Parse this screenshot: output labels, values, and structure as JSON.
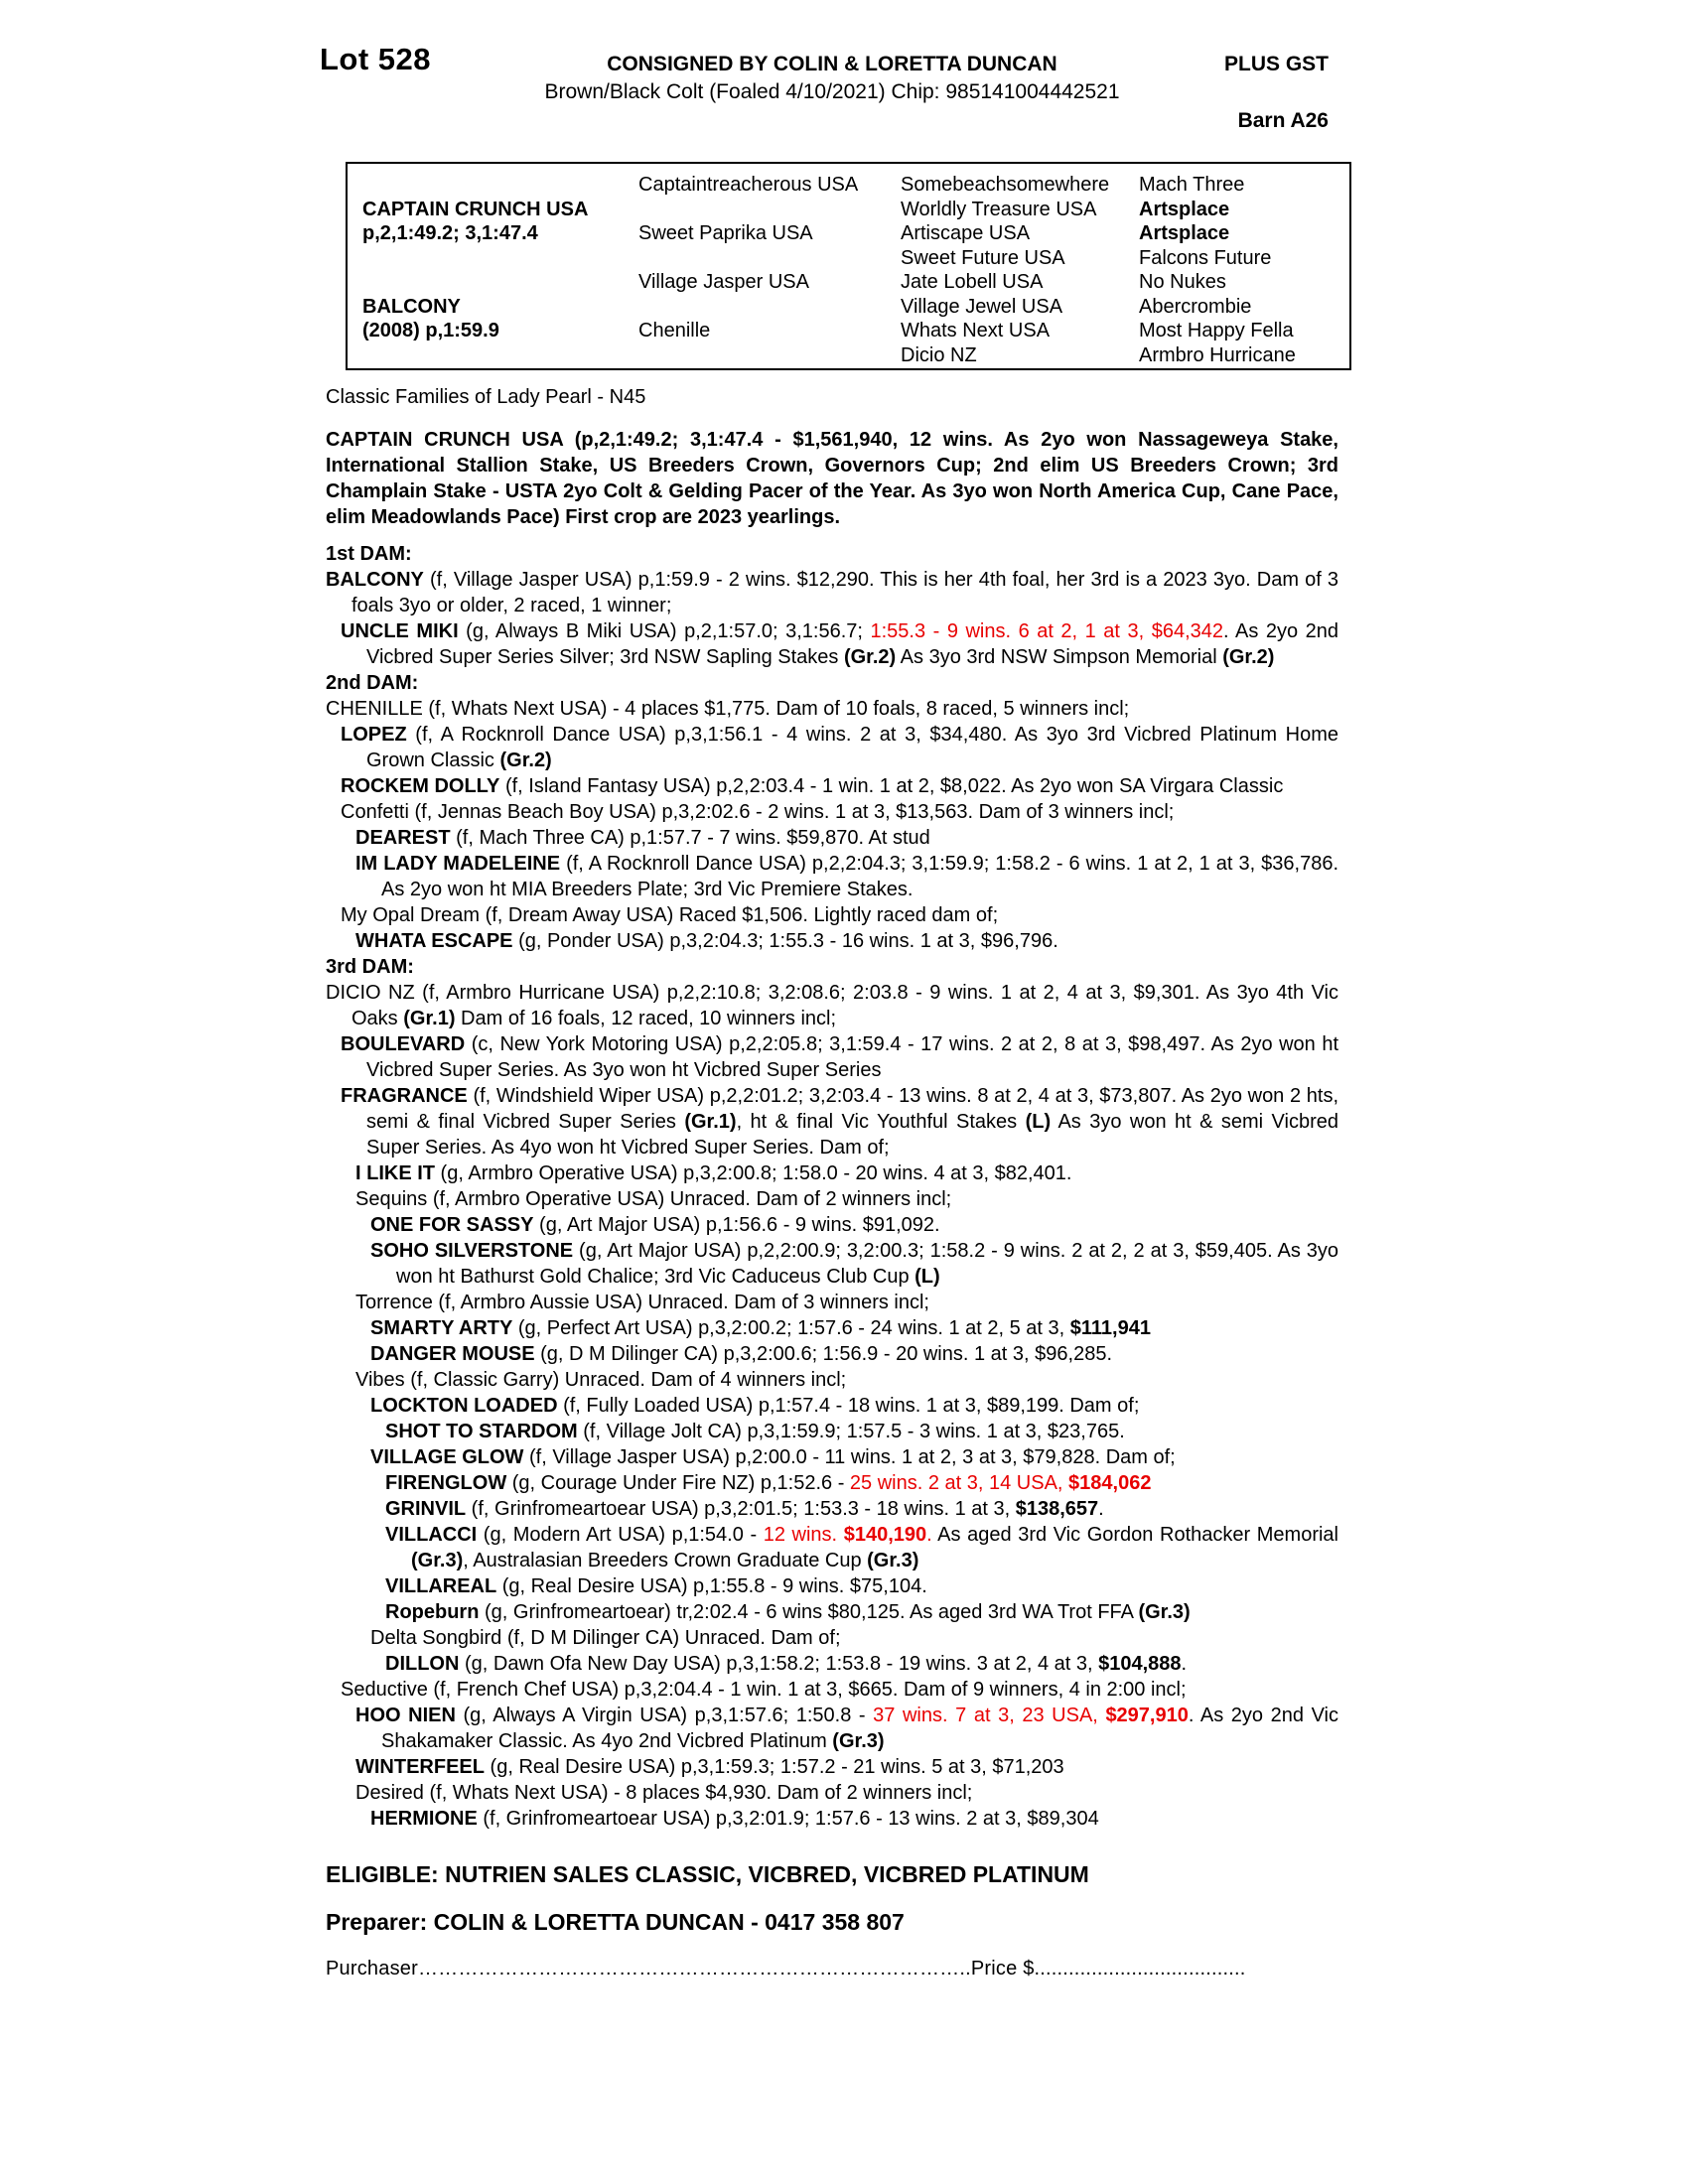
{
  "colors": {
    "red": "#e80000",
    "text": "#000000",
    "page": "#ffffff"
  },
  "header": {
    "lot": "Lot 528",
    "consignor": "CONSIGNED BY COLIN & LORETTA DUNCAN",
    "gst": "PLUS GST",
    "description": "Brown/Black Colt (Foaled 4/10/2021) Chip: 985141004442521",
    "barn": "Barn A26"
  },
  "pedigree": {
    "subject1_name": "CAPTAIN CRUNCH USA",
    "subject1_record": "p,2,1:49.2; 3,1:47.4",
    "subject2_name": "BALCONY",
    "subject2_record": "(2008) p,1:59.9",
    "gen2": [
      "Captaintreacherous USA",
      "Sweet Paprika USA",
      "Village Jasper USA",
      "Chenille"
    ],
    "gen3": [
      "Somebeachsomewhere",
      "Worldly Treasure USA",
      "Artiscape USA",
      "Sweet Future USA",
      "Jate Lobell USA",
      "Village Jewel USA",
      "Whats Next USA",
      "Dicio NZ"
    ],
    "gen4": [
      "Mach Three",
      "Artsplace",
      "Artsplace",
      "Falcons Future",
      "No Nukes",
      "Abercrombie",
      "Most Happy Fella",
      "Armbro Hurricane"
    ]
  },
  "family_note": "Classic Families of Lady Pearl - N45",
  "sire_paragraph": "CAPTAIN CRUNCH USA (p,2,1:49.2; 3,1:47.4 - $1,561,940, 12 wins. As 2yo won Nassageweya Stake, International Stallion Stake, US Breeders Crown, Governors Cup; 2nd elim US Breeders Crown; 3rd Champlain Stake - USTA 2yo Colt & Gelding Pacer of the Year. As 3yo won North America Cup, Cane Pace, elim Meadowlands Pace) First crop are 2023 yearlings.",
  "sections": [
    {
      "heading": "1st DAM:",
      "entries": [
        {
          "indent": 0,
          "segments": [
            {
              "t": "BALCONY",
              "b": true
            },
            {
              "t": " (f, Village Jasper USA) p,1:59.9 - 2 wins. $12,290. This is her 4th foal, her 3rd is a 2023 3yo. Dam of 3 foals 3yo or older, 2 raced, 1 winner;"
            }
          ]
        },
        {
          "indent": 1,
          "segments": [
            {
              "t": "UNCLE MIKI",
              "b": true
            },
            {
              "t": " (g, Always B Miki USA) p,2,1:57.0; 3,1:56.7; "
            },
            {
              "t": "1:55.3 - 9 wins. 6 at 2, 1 at 3, $64,342",
              "r": true
            },
            {
              "t": ". As 2yo 2nd Vicbred Super Series Silver; 3rd NSW Sapling Stakes "
            },
            {
              "t": "(Gr.2)",
              "b": true
            },
            {
              "t": " As 3yo 3rd NSW Simpson Memorial "
            },
            {
              "t": "(Gr.2)",
              "b": true
            }
          ]
        }
      ]
    },
    {
      "heading": "2nd DAM:",
      "entries": [
        {
          "indent": 0,
          "segments": [
            {
              "t": "CHENILLE (f, Whats Next USA) - 4 places $1,775. Dam of 10 foals, 8 raced, 5 winners incl;"
            }
          ]
        },
        {
          "indent": 1,
          "segments": [
            {
              "t": "LOPEZ",
              "b": true
            },
            {
              "t": " (f, A Rocknroll Dance USA) p,3,1:56.1 - 4 wins. 2 at 3, $34,480. As 3yo 3rd Vicbred Platinum Home Grown Classic "
            },
            {
              "t": "(Gr.2)",
              "b": true
            }
          ]
        },
        {
          "indent": 1,
          "segments": [
            {
              "t": "ROCKEM DOLLY",
              "b": true
            },
            {
              "t": " (f, Island Fantasy USA) p,2,2:03.4 - 1 win. 1 at 2, $8,022. As 2yo won SA Virgara Classic"
            }
          ]
        },
        {
          "indent": 1,
          "segments": [
            {
              "t": "Confetti (f, Jennas Beach Boy USA) p,3,2:02.6 - 2 wins. 1 at 3, $13,563. Dam of 3 winners incl;"
            }
          ]
        },
        {
          "indent": 2,
          "segments": [
            {
              "t": "DEAREST",
              "b": true
            },
            {
              "t": " (f, Mach Three CA) p,1:57.7 - 7 wins. $59,870. At stud"
            }
          ]
        },
        {
          "indent": 2,
          "segments": [
            {
              "t": "IM LADY MADELEINE",
              "b": true
            },
            {
              "t": " (f, A Rocknroll Dance USA) p,2,2:04.3; 3,1:59.9; 1:58.2 - 6 wins. 1 at 2, 1 at 3, $36,786. As 2yo won ht MIA Breeders Plate; 3rd Vic Premiere Stakes."
            }
          ]
        },
        {
          "indent": 1,
          "segments": [
            {
              "t": "My Opal Dream (f, Dream Away USA) Raced $1,506. Lightly raced dam of;"
            }
          ]
        },
        {
          "indent": 2,
          "segments": [
            {
              "t": "WHATA ESCAPE",
              "b": true
            },
            {
              "t": " (g, Ponder USA) p,3,2:04.3; 1:55.3 - 16 wins. 1 at 3, $96,796."
            }
          ]
        }
      ]
    },
    {
      "heading": "3rd DAM:",
      "entries": [
        {
          "indent": 0,
          "segments": [
            {
              "t": "DICIO NZ (f, Armbro Hurricane USA) p,2,2:10.8; 3,2:08.6; 2:03.8 - 9 wins. 1 at 2, 4 at 3, $9,301. As 3yo 4th Vic Oaks "
            },
            {
              "t": "(Gr.1)",
              "b": true
            },
            {
              "t": " Dam of 16 foals, 12 raced, 10 winners incl;"
            }
          ]
        },
        {
          "indent": 1,
          "segments": [
            {
              "t": "BOULEVARD",
              "b": true
            },
            {
              "t": " (c, New York Motoring USA) p,2,2:05.8; 3,1:59.4 - 17 wins. 2 at 2, 8 at 3, $98,497. As 2yo won ht Vicbred Super Series. As 3yo won ht Vicbred Super Series"
            }
          ]
        },
        {
          "indent": 1,
          "segments": [
            {
              "t": "FRAGRANCE",
              "b": true
            },
            {
              "t": " (f, Windshield Wiper USA) p,2,2:01.2; 3,2:03.4 - 13 wins. 8 at 2, 4 at 3, $73,807. As 2yo won 2 hts, semi & final Vicbred Super Series "
            },
            {
              "t": "(Gr.1)",
              "b": true
            },
            {
              "t": ", ht & final Vic Youthful Stakes "
            },
            {
              "t": "(L)",
              "b": true
            },
            {
              "t": " As 3yo won ht & semi Vicbred Super Series. As 4yo won ht Vicbred Super Series. Dam of;"
            }
          ]
        },
        {
          "indent": 2,
          "segments": [
            {
              "t": "I LIKE IT",
              "b": true
            },
            {
              "t": " (g, Armbro Operative USA) p,3,2:00.8; 1:58.0 - 20 wins. 4 at 3, $82,401."
            }
          ]
        },
        {
          "indent": 2,
          "segments": [
            {
              "t": "Sequins (f, Armbro Operative USA) Unraced. Dam of 2 winners incl;"
            }
          ]
        },
        {
          "indent": 3,
          "segments": [
            {
              "t": "ONE FOR SASSY",
              "b": true
            },
            {
              "t": " (g, Art Major USA) p,1:56.6 - 9 wins. $91,092."
            }
          ]
        },
        {
          "indent": 3,
          "segments": [
            {
              "t": "SOHO SILVERSTONE",
              "b": true
            },
            {
              "t": " (g, Art Major USA) p,2,2:00.9; 3,2:00.3; 1:58.2 - 9 wins. 2 at 2, 2 at 3, $59,405. As 3yo won ht Bathurst Gold Chalice; 3rd Vic Caduceus Club Cup "
            },
            {
              "t": "(L)",
              "b": true
            }
          ]
        },
        {
          "indent": 2,
          "segments": [
            {
              "t": "Torrence (f, Armbro Aussie USA) Unraced. Dam of 3 winners incl;"
            }
          ]
        },
        {
          "indent": 3,
          "segments": [
            {
              "t": "SMARTY ARTY",
              "b": true
            },
            {
              "t": " (g, Perfect Art USA) p,3,2:00.2; 1:57.6 - 24 wins. 1 at 2, 5 at 3, "
            },
            {
              "t": "$111,941",
              "b": true
            }
          ]
        },
        {
          "indent": 3,
          "segments": [
            {
              "t": "DANGER MOUSE",
              "b": true
            },
            {
              "t": " (g, D M Dilinger CA) p,3,2:00.6; 1:56.9 - 20 wins. 1 at 3, $96,285."
            }
          ]
        },
        {
          "indent": 2,
          "segments": [
            {
              "t": "Vibes (f, Classic Garry) Unraced. Dam of 4 winners incl;"
            }
          ]
        },
        {
          "indent": 3,
          "segments": [
            {
              "t": "LOCKTON LOADED",
              "b": true
            },
            {
              "t": " (f, Fully Loaded USA) p,1:57.4 - 18 wins. 1 at 3, $89,199. Dam of;"
            }
          ]
        },
        {
          "indent": 4,
          "segments": [
            {
              "t": "SHOT TO STARDOM",
              "b": true
            },
            {
              "t": " (f, Village Jolt CA) p,3,1:59.9; 1:57.5 - 3 wins. 1 at 3, $23,765."
            }
          ]
        },
        {
          "indent": 3,
          "segments": [
            {
              "t": "VILLAGE GLOW",
              "b": true
            },
            {
              "t": " (f, Village Jasper USA) p,2:00.0 - 11 wins. 1 at 2, 3 at 3, $79,828. Dam of;"
            }
          ]
        },
        {
          "indent": 4,
          "segments": [
            {
              "t": "FIRENGLOW",
              "b": true
            },
            {
              "t": " (g, Courage Under Fire NZ) p,1:52.6 - "
            },
            {
              "t": "25 wins. 2 at 3, 14 USA, ",
              "r": true
            },
            {
              "t": "$184,062",
              "r": true,
              "b": true
            }
          ]
        },
        {
          "indent": 4,
          "segments": [
            {
              "t": "GRINVIL",
              "b": true
            },
            {
              "t": " (f, Grinfromeartoear USA) p,3,2:01.5; 1:53.3 - 18 wins. 1 at 3, "
            },
            {
              "t": "$138,657",
              "b": true
            },
            {
              "t": "."
            }
          ]
        },
        {
          "indent": 4,
          "segments": [
            {
              "t": "VILLACCI",
              "b": true
            },
            {
              "t": " (g, Modern Art USA) p,1:54.0 - "
            },
            {
              "t": "12 wins. ",
              "r": true
            },
            {
              "t": "$140,190",
              "r": true,
              "b": true
            },
            {
              "t": ".",
              "r": true
            },
            {
              "t": " As aged 3rd Vic Gordon Rothacker Memorial "
            },
            {
              "t": "(Gr.3)",
              "b": true
            },
            {
              "t": ", Australasian Breeders Crown Graduate Cup "
            },
            {
              "t": "(Gr.3)",
              "b": true
            }
          ]
        },
        {
          "indent": 4,
          "segments": [
            {
              "t": "VILLAREAL",
              "b": true
            },
            {
              "t": " (g, Real Desire USA) p,1:55.8 - 9 wins. $75,104."
            }
          ]
        },
        {
          "indent": 4,
          "segments": [
            {
              "t": "Ropeburn",
              "b": true
            },
            {
              "t": " (g, Grinfromeartoear) tr,2:02.4 - 6 wins $80,125. As aged 3rd WA Trot FFA "
            },
            {
              "t": "(Gr.3)",
              "b": true
            }
          ]
        },
        {
          "indent": 3,
          "segments": [
            {
              "t": "Delta Songbird (f, D M Dilinger CA) Unraced. Dam of;"
            }
          ]
        },
        {
          "indent": 4,
          "segments": [
            {
              "t": "DILLON",
              "b": true
            },
            {
              "t": " (g, Dawn Ofa New Day USA) p,3,1:58.2; 1:53.8 - 19 wins. 3 at 2, 4 at 3, "
            },
            {
              "t": "$104,888",
              "b": true
            },
            {
              "t": "."
            }
          ]
        },
        {
          "indent": 1,
          "segments": [
            {
              "t": "Seductive (f, French Chef USA) p,3,2:04.4 - 1 win. 1 at 3, $665. Dam of 9 winners, 4 in 2:00 incl;"
            }
          ]
        },
        {
          "indent": 2,
          "segments": [
            {
              "t": "HOO NIEN",
              "b": true
            },
            {
              "t": " (g, Always A Virgin USA) p,3,1:57.6; 1:50.8 - "
            },
            {
              "t": "37 wins. 7 at 3, 23 USA, ",
              "r": true
            },
            {
              "t": "$297,910",
              "r": true,
              "b": true
            },
            {
              "t": ". As 2yo 2nd Vic Shakamaker Classic. As 4yo 2nd Vicbred Platinum "
            },
            {
              "t": "(Gr.3)",
              "b": true
            }
          ]
        },
        {
          "indent": 2,
          "segments": [
            {
              "t": "WINTERFEEL",
              "b": true
            },
            {
              "t": " (g, Real Desire USA) p,3,1:59.3; 1:57.2 - 21 wins. 5 at 3, $71,203"
            }
          ]
        },
        {
          "indent": 2,
          "segments": [
            {
              "t": "Desired (f, Whats Next USA) - 8 places $4,930. Dam of 2 winners incl;"
            }
          ]
        },
        {
          "indent": 3,
          "segments": [
            {
              "t": "HERMIONE",
              "b": true
            },
            {
              "t": " (f, Grinfromeartoear USA) p,3,2:01.9; 1:57.6 - 13 wins. 2 at 3, $89,304"
            }
          ]
        }
      ]
    }
  ],
  "footer": {
    "eligible": "ELIGIBLE: NUTRIEN SALES CLASSIC, VICBRED, VICBRED PLATINUM",
    "preparer": "Preparer: COLIN & LORETTA DUNCAN - 0417 358 807",
    "purchaser_line": "Purchaser………………………………………………………………………..Price $....................................."
  }
}
